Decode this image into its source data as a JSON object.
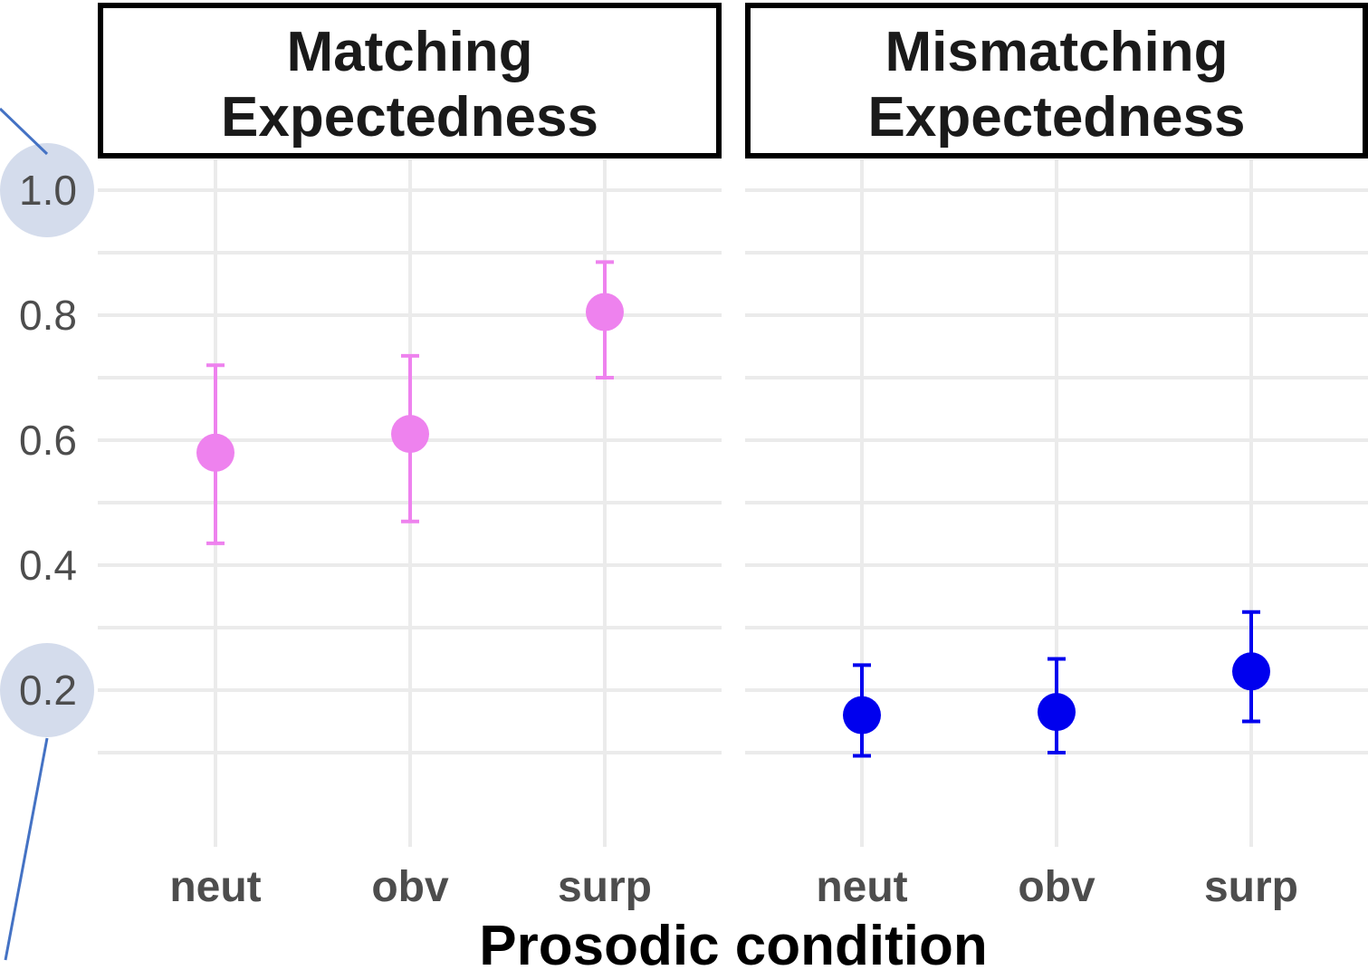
{
  "chart_data": {
    "type": "scatter",
    "xlabel": "Prosodic condition",
    "ylabel": "",
    "categories": [
      "neut",
      "obv",
      "surp"
    ],
    "ylim": [
      0.0,
      1.0
    ],
    "yticks": [
      "0.2",
      "0.4",
      "0.6",
      "0.8",
      "1.0"
    ],
    "highlighted_ticks": [
      "1.0",
      "0.2"
    ],
    "grid": true,
    "facets": [
      {
        "name": "Matching\nExpectedness",
        "color": "#ee82ee",
        "points": [
          {
            "x": "neut",
            "y": 0.58,
            "lower": 0.435,
            "upper": 0.72
          },
          {
            "x": "obv",
            "y": 0.61,
            "lower": 0.47,
            "upper": 0.735
          },
          {
            "x": "surp",
            "y": 0.805,
            "lower": 0.7,
            "upper": 0.885
          }
        ]
      },
      {
        "name": "Mismatching\nExpectedness",
        "color": "#0000ee",
        "points": [
          {
            "x": "neut",
            "y": 0.16,
            "lower": 0.095,
            "upper": 0.24
          },
          {
            "x": "obv",
            "y": 0.165,
            "lower": 0.1,
            "upper": 0.25
          },
          {
            "x": "surp",
            "y": 0.23,
            "lower": 0.15,
            "upper": 0.325
          }
        ]
      }
    ]
  },
  "colors": {
    "gridline": "#ebebeb",
    "highlight_circle": "#d4dcec",
    "callout_line": "#4472c4"
  }
}
